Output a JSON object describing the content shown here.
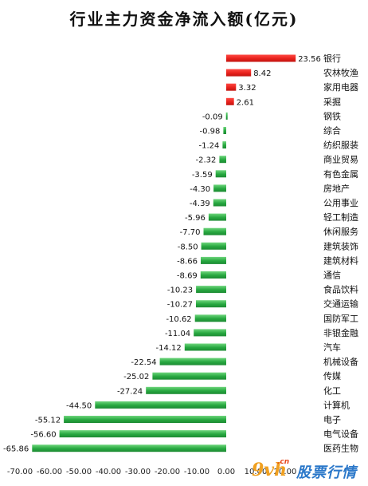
{
  "chart_data": {
    "type": "bar",
    "orientation": "horizontal",
    "title": "行业主力资金净流入额(亿元)",
    "categories": [
      "银行",
      "农林牧渔",
      "家用电器",
      "采掘",
      "钢铁",
      "综合",
      "纺织服装",
      "商业贸易",
      "有色金属",
      "房地产",
      "公用事业",
      "轻工制造",
      "休闲服务",
      "建筑装饰",
      "建筑材料",
      "通信",
      "食品饮料",
      "交通运输",
      "国防军工",
      "非银金融",
      "汽车",
      "机械设备",
      "传媒",
      "化工",
      "计算机",
      "电子",
      "电气设备",
      "医药生物"
    ],
    "values": [
      23.56,
      8.42,
      3.32,
      2.61,
      -0.09,
      -0.98,
      -1.24,
      -2.32,
      -3.59,
      -4.3,
      -4.39,
      -5.96,
      -7.7,
      -8.5,
      -8.66,
      -8.69,
      -10.23,
      -10.27,
      -10.62,
      -11.04,
      -14.12,
      -22.54,
      -25.02,
      -27.24,
      -44.5,
      -55.12,
      -56.6,
      -65.86
    ],
    "value_labels": [
      "23.56",
      "8.42",
      "3.32",
      "2.61",
      "-0.09",
      "-0.98",
      "-1.24",
      "-2.32",
      "-3.59",
      "-4.30",
      "-4.39",
      "-5.96",
      "-7.70",
      "-8.50",
      "-8.66",
      "-8.69",
      "-10.23",
      "-10.27",
      "-10.62",
      "-11.04",
      "-14.12",
      "-22.54",
      "-25.02",
      "-27.24",
      "-44.50",
      "-55.12",
      "-56.60",
      "-65.86"
    ],
    "xlim": [
      -70,
      30
    ],
    "x_ticks": [
      "-70.00",
      "-60.00",
      "-50.00",
      "-40.00",
      "-30.00",
      "-20.00",
      "-10.00",
      "0.00",
      "10.00",
      "20.00"
    ],
    "x_tick_values": [
      -70,
      -60,
      -50,
      -40,
      -30,
      -20,
      -10,
      0,
      10,
      20
    ],
    "xlabel": "",
    "ylabel": "",
    "grid": false,
    "legend": "none",
    "colors": {
      "positive": "#e8211c",
      "negative": "#27a840",
      "negative_light": "#6fd67d"
    }
  },
  "watermark": {
    "logo": "9vh",
    "domain": ".cn",
    "name": "股票行情"
  }
}
